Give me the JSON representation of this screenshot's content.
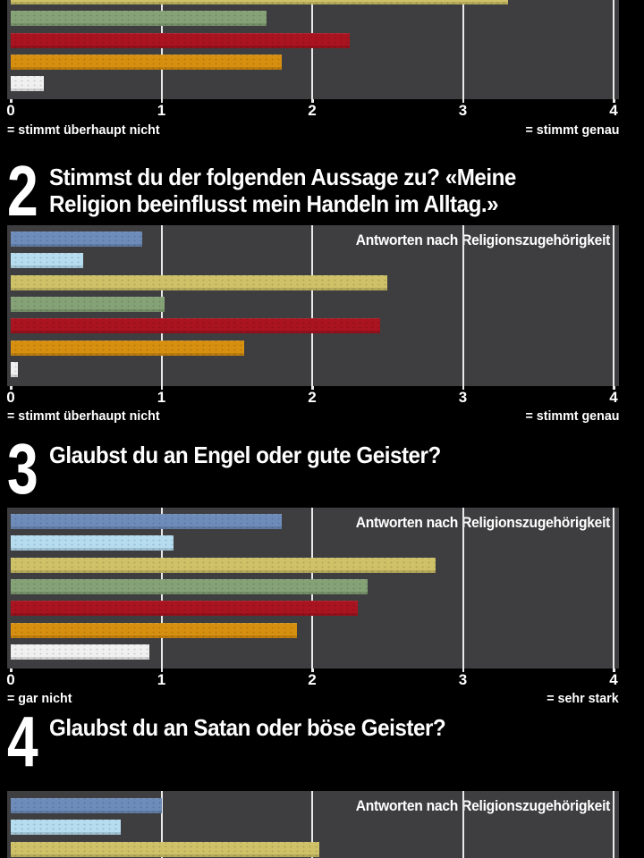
{
  "page_bg": "#000000",
  "palette": {
    "steel_blue": "#6e8cba",
    "light_blue": "#b5dcef",
    "yellow": "#cfc167",
    "green": "#85a277",
    "red": "#a91420",
    "orange": "#d78f10",
    "white": "#f0f0f0"
  },
  "chart_bg": "#3e3e40",
  "gridline_color": "#e9e9e9",
  "text_color": "#ffffff",
  "chart_data": [
    {
      "type": "bar",
      "orientation": "horizontal",
      "xlim": [
        0,
        4
      ],
      "grid": true,
      "clipped": "top",
      "bars": [
        {
          "color": "yellow",
          "value": 3.3
        },
        {
          "color": "green",
          "value": 1.7
        },
        {
          "color": "red",
          "value": 2.25
        },
        {
          "color": "orange",
          "value": 1.8
        },
        {
          "color": "white",
          "value": 0.22
        }
      ],
      "axis": {
        "ticks": [
          "0",
          "1",
          "2",
          "3",
          "4"
        ],
        "min_label": "= stimmt überhaupt nicht",
        "max_label": "= stimmt genau"
      }
    },
    {
      "type": "bar",
      "orientation": "horizontal",
      "xlim": [
        0,
        4
      ],
      "grid": true,
      "number": "2",
      "question": "Stimmst du der folgenden Aussage zu? «Meine Religion beeinflusst mein Handeln im Alltag.»",
      "question_lines": [
        "Stimmst du der folgenden Aussage zu? «Meine",
        "Religion beeinflusst mein Handeln im Alltag.»"
      ],
      "inset_label": "Antworten nach Religionszugehörigkeit",
      "bars": [
        {
          "color": "steel_blue",
          "value": 0.87
        },
        {
          "color": "light_blue",
          "value": 0.48
        },
        {
          "color": "yellow",
          "value": 2.5
        },
        {
          "color": "green",
          "value": 1.02
        },
        {
          "color": "red",
          "value": 2.45
        },
        {
          "color": "orange",
          "value": 1.55
        },
        {
          "color": "white",
          "value": 0.05
        }
      ],
      "axis": {
        "ticks": [
          "0",
          "1",
          "2",
          "3",
          "4"
        ],
        "min_label": "= stimmt überhaupt nicht",
        "max_label": "= stimmt genau"
      }
    },
    {
      "type": "bar",
      "orientation": "horizontal",
      "xlim": [
        0,
        4
      ],
      "grid": true,
      "number": "3",
      "question": "Glaubst du an Engel oder gute Geister?",
      "question_lines": [
        "Glaubst du an Engel oder gute Geister?"
      ],
      "inset_label": "Antworten nach Religionszugehörigkeit",
      "bars": [
        {
          "color": "steel_blue",
          "value": 1.8
        },
        {
          "color": "light_blue",
          "value": 1.08
        },
        {
          "color": "yellow",
          "value": 2.82
        },
        {
          "color": "green",
          "value": 2.37
        },
        {
          "color": "red",
          "value": 2.3
        },
        {
          "color": "orange",
          "value": 1.9
        },
        {
          "color": "white",
          "value": 0.92
        }
      ],
      "axis": {
        "ticks": [
          "0",
          "1",
          "2",
          "3",
          "4"
        ],
        "min_label": "= gar nicht",
        "max_label": "= sehr stark"
      }
    },
    {
      "type": "bar",
      "orientation": "horizontal",
      "xlim": [
        0,
        4
      ],
      "grid": true,
      "clipped": "bottom",
      "number": "4",
      "question": "Glaubst du an Satan oder böse Geister?",
      "question_lines": [
        "Glaubst du an Satan oder böse Geister?"
      ],
      "inset_label": "Antworten nach Religionszugehörigkeit",
      "bars": [
        {
          "color": "steel_blue",
          "value": 1.0
        },
        {
          "color": "light_blue",
          "value": 0.73
        },
        {
          "color": "yellow",
          "value": 2.05
        }
      ]
    }
  ]
}
